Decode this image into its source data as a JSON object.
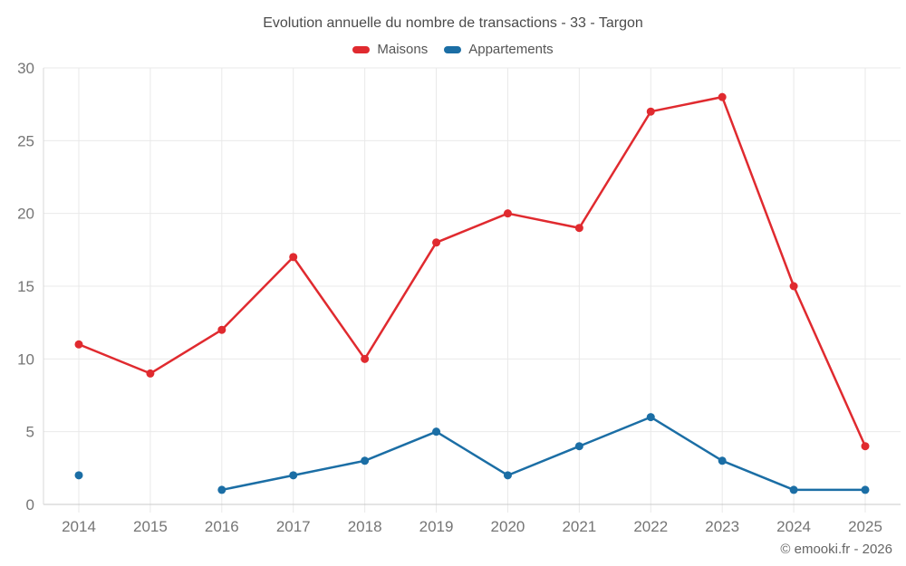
{
  "chart_data": {
    "type": "line",
    "title": "Evolution annuelle du nombre de transactions - 33 - Targon",
    "categories": [
      "2014",
      "2015",
      "2016",
      "2017",
      "2018",
      "2019",
      "2020",
      "2021",
      "2022",
      "2023",
      "2024",
      "2025"
    ],
    "series": [
      {
        "name": "Maisons",
        "color": "#e02a2f",
        "values": [
          11,
          9,
          12,
          17,
          10,
          18,
          20,
          19,
          27,
          28,
          15,
          4
        ]
      },
      {
        "name": "Appartements",
        "color": "#1b6ea5",
        "values": [
          2,
          null,
          1,
          2,
          3,
          5,
          2,
          4,
          6,
          3,
          1,
          1
        ]
      }
    ],
    "xlabel": "",
    "ylabel": "",
    "ylim": [
      0,
      30
    ],
    "yticks": [
      0,
      5,
      10,
      15,
      20,
      25,
      30
    ],
    "grid": true,
    "legend_position": "top",
    "colors": {
      "gridline": "#e9e9e9",
      "axis_line": "#c9c9c9",
      "plot_border": "#d9d9d9",
      "tick_label": "#757575"
    }
  },
  "footer": {
    "credit": "© emooki.fr - 2026"
  }
}
